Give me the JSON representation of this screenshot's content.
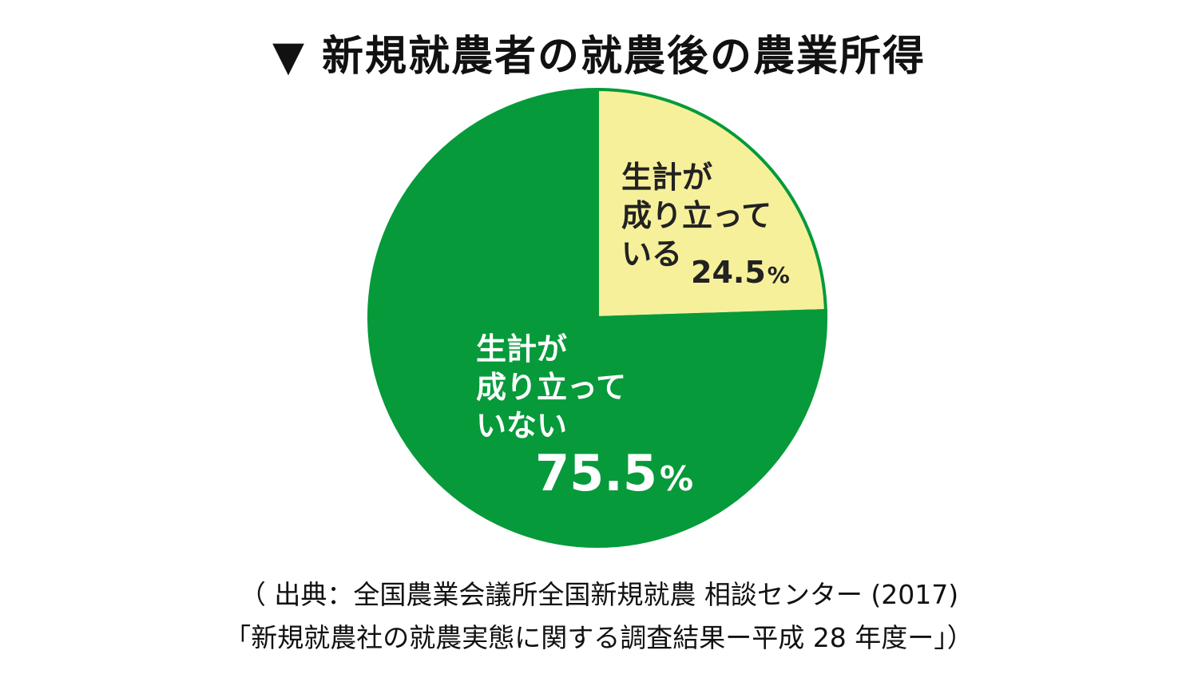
{
  "title": "▼ 新規就農者の就農後の農業所得",
  "chart_data": {
    "type": "pie",
    "start_angle_deg": 0,
    "direction": "clockwise",
    "slices": [
      {
        "label_lines": [
          "生計が",
          "成り立って",
          "いる"
        ],
        "value": 24.5,
        "value_label": "24.5",
        "unit": "%",
        "color": "#f7f09b",
        "text_color": "#222222"
      },
      {
        "label_lines": [
          "生計が",
          "成り立って",
          "いない"
        ],
        "value": 75.5,
        "value_label": "75.5",
        "unit": "%",
        "color": "#069a3a",
        "text_color": "#ffffff"
      }
    ]
  },
  "source": {
    "line1": "（ 出典：全国農業会議所全国新規就農 相談センター (2017)",
    "line2": "「新規就農社の就農実態に関する調査結果ー平成 28 年度ー」）"
  }
}
